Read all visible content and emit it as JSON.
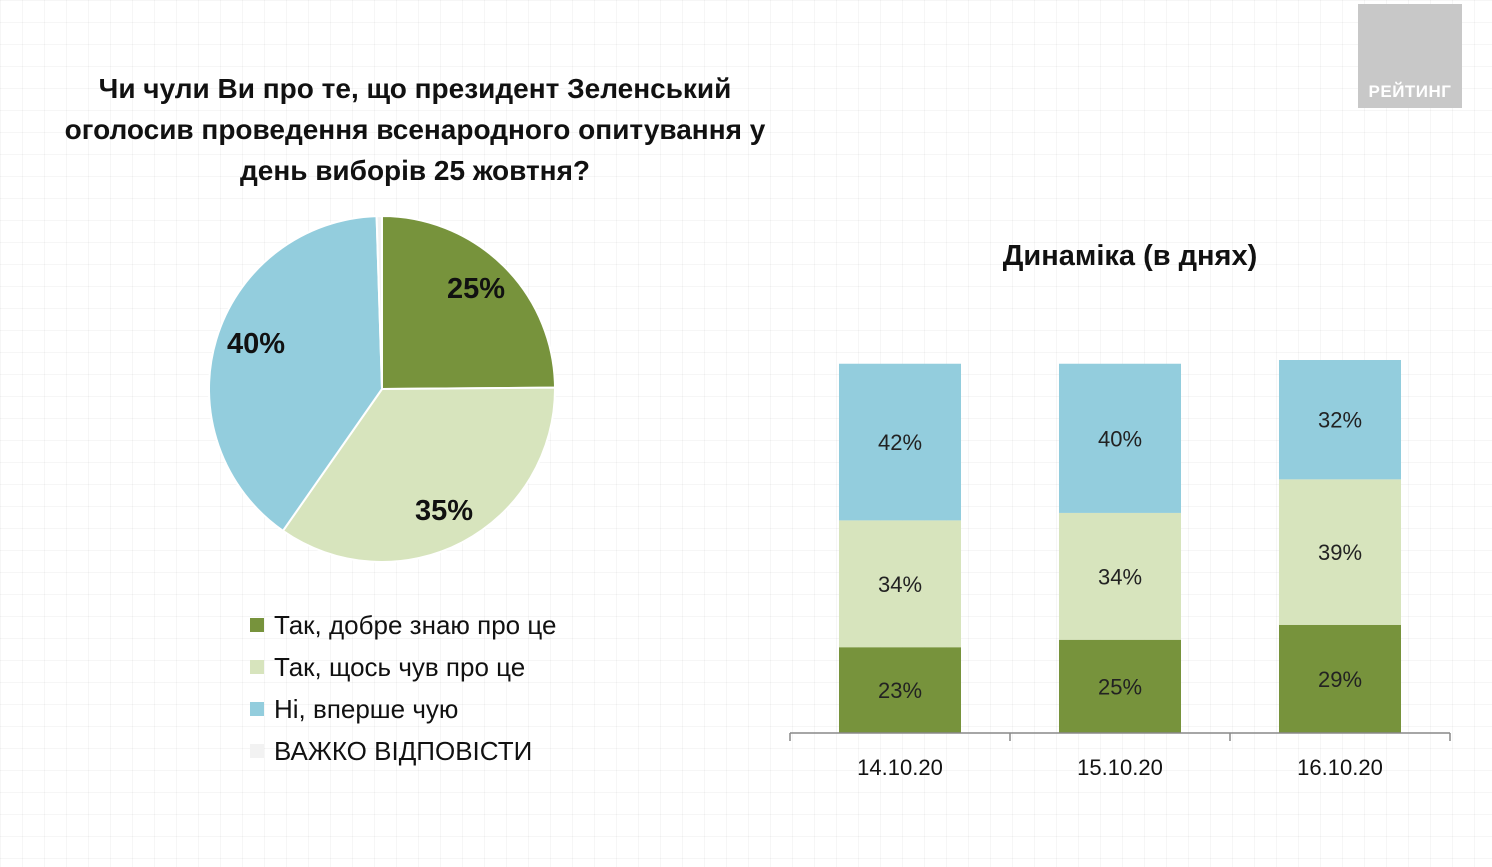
{
  "logo": {
    "text": "РЕЙТИНГ"
  },
  "chart_data": [
    {
      "type": "pie",
      "title": "Чи чули Ви про те, що президент Зеленський оголосив проведення  всенародного опитування у день виборів 25 жовтня?",
      "labels": [
        "Так, добре знаю про це",
        "Так, щось чув про це",
        "Ні, вперше чую",
        "ВАЖКО ВІДПОВІСТИ"
      ],
      "values": [
        25,
        35,
        40,
        0.5
      ],
      "value_labels": [
        "25%",
        "35%",
        "40%",
        ""
      ],
      "colors": [
        "#77933c",
        "#d7e4bd",
        "#93cddd",
        "#f2f2f2"
      ],
      "legend_position": "bottom"
    },
    {
      "type": "bar",
      "stacked": true,
      "title": "Динаміка (в днях)",
      "categories": [
        "14.10.20",
        "15.10.20",
        "16.10.20"
      ],
      "series": [
        {
          "name": "Так, добре знаю про це",
          "values": [
            23,
            25,
            29
          ],
          "labels": [
            "23%",
            "25%",
            "29%"
          ],
          "color": "#77933c"
        },
        {
          "name": "Так, щось чув про це",
          "values": [
            34,
            34,
            39
          ],
          "labels": [
            "34%",
            "34%",
            "39%"
          ],
          "color": "#d7e4bd"
        },
        {
          "name": "Ні, вперше чую",
          "values": [
            42,
            40,
            32
          ],
          "labels": [
            "42%",
            "40%",
            "32%"
          ],
          "color": "#93cddd"
        }
      ],
      "ylim": [
        0,
        100
      ],
      "grid": false
    }
  ]
}
